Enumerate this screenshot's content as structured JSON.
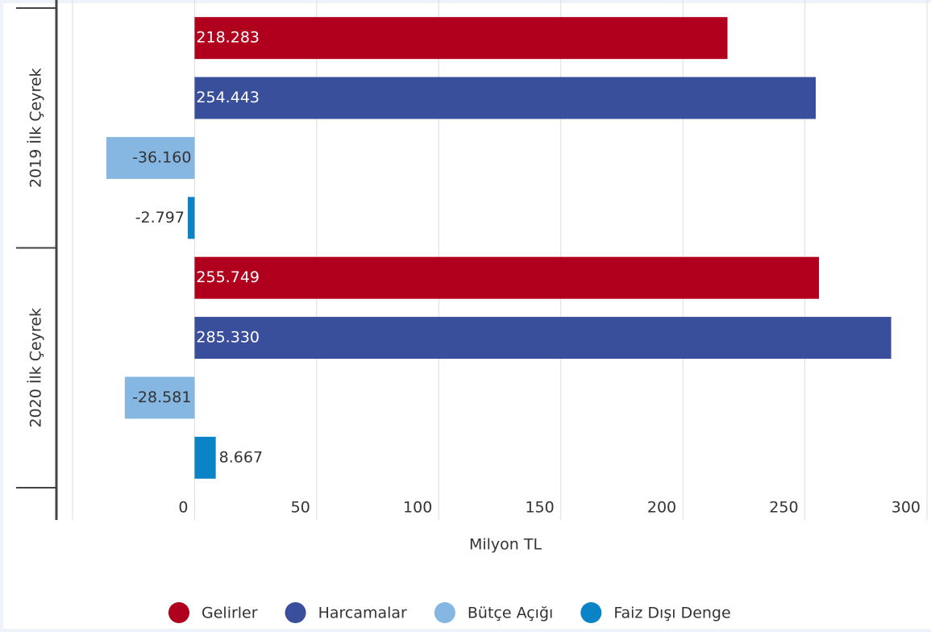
{
  "chart_data": {
    "type": "bar",
    "orientation": "horizontal",
    "categories": [
      "2019 İlk Çeyrek",
      "2020 İlk Çeyrek"
    ],
    "series": [
      {
        "name": "Gelirler",
        "color": "#b0001e",
        "values": [
          218.283,
          255.749
        ],
        "value_labels": [
          "218.283",
          "255.749"
        ]
      },
      {
        "name": "Harcamalar",
        "color": "#3a4f9c",
        "values": [
          254.443,
          285.33
        ],
        "value_labels": [
          "254.443",
          "285.330"
        ]
      },
      {
        "name": "Bütçe Açığı",
        "color": "#85b7e2",
        "values": [
          -36.16,
          -28.581
        ],
        "value_labels": [
          "-36.160",
          "-28.581"
        ]
      },
      {
        "name": "Faiz Dışı Denge",
        "color": "#0a84c6",
        "values": [
          -2.797,
          8.667
        ],
        "value_labels": [
          "-2.797",
          "8.667"
        ]
      }
    ],
    "xlabel": "Milyon TL",
    "xlim": [
      -50,
      300
    ],
    "xticks": [
      0,
      50,
      100,
      150,
      200,
      250,
      300
    ],
    "grid": true,
    "legend": "bottom"
  }
}
